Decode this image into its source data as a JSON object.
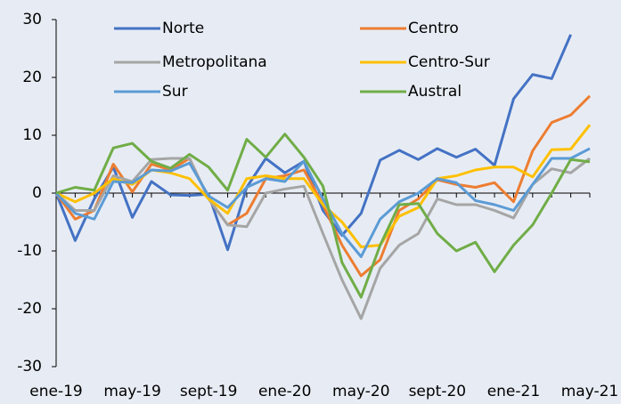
{
  "chart_data": {
    "type": "line",
    "categories": [
      "ene-19",
      null,
      null,
      null,
      "may-19",
      null,
      null,
      null,
      "sept-19",
      null,
      null,
      null,
      "ene-20",
      null,
      null,
      null,
      "may-20",
      null,
      null,
      null,
      "sept-20",
      null,
      null,
      null,
      "ene-21",
      null,
      null,
      null,
      "may-21"
    ],
    "series": [
      {
        "name": "Norte",
        "color": "#4472c4",
        "values": [
          0,
          -8.2,
          -1,
          4.5,
          -4.2,
          2,
          -0.3,
          -0.4,
          -0.2,
          -9.8,
          1,
          6,
          3.5,
          5.5,
          -3,
          -7.3,
          -3.5,
          5.7,
          7.4,
          5.8,
          7.7,
          6.2,
          7.6,
          4.8,
          16.3,
          20.5,
          19.8,
          27.4,
          null
        ]
      },
      {
        "name": "Centro",
        "color": "#ed7d31",
        "values": [
          0,
          -4.5,
          -3,
          5,
          0.2,
          5,
          4,
          6,
          -1,
          -5.5,
          -3.5,
          2.5,
          3,
          4,
          -2,
          -9,
          -14.3,
          -11.5,
          -3,
          -1,
          2.3,
          1.5,
          1,
          1.8,
          -1.5,
          7.3,
          12.2,
          13.5,
          16.8
        ]
      },
      {
        "name": "Metropolitana",
        "color": "#a5a5a5",
        "values": [
          0,
          -3,
          -3,
          3,
          2,
          5.8,
          6,
          6,
          -1,
          -5.5,
          -5.8,
          0,
          0.7,
          1.2,
          -7,
          -15,
          -21.7,
          -13,
          -9,
          -7,
          -1,
          -2,
          -2,
          -3,
          -4.3,
          1.5,
          4.2,
          3.5,
          6
        ]
      },
      {
        "name": "Centro-Sur",
        "color": "#ffc000",
        "values": [
          0,
          -1.5,
          0,
          2.5,
          1.5,
          4,
          3.5,
          2.5,
          -1,
          -3.5,
          2.5,
          3,
          2.5,
          2.5,
          -2,
          -5,
          -9.3,
          -9,
          -4,
          -2.5,
          2.5,
          3,
          4,
          4.5,
          4.5,
          2.8,
          7.5,
          7.6,
          11.8
        ]
      },
      {
        "name": "Sur",
        "color": "#5b9bd5",
        "values": [
          0,
          -3.5,
          -4.5,
          2,
          1.8,
          4,
          3.8,
          5.2,
          -0.5,
          -2.5,
          1,
          2.5,
          2,
          5.5,
          -1,
          -7,
          -11,
          -4.5,
          -1.5,
          0,
          2.5,
          1.8,
          -1.3,
          -2,
          -3,
          1.5,
          6,
          6,
          7.7
        ]
      },
      {
        "name": "Austral",
        "color": "#70ad47",
        "values": [
          0,
          1,
          0.5,
          7.8,
          8.6,
          5.5,
          4.3,
          6.7,
          4.5,
          0.5,
          9.3,
          6.2,
          10.2,
          6.2,
          1.2,
          -12,
          -18,
          -9,
          -2,
          -1.8,
          -7,
          -10,
          -8.5,
          -13.6,
          -9,
          -5.5,
          0,
          5.8,
          5.4
        ]
      }
    ],
    "ylim": [
      -30,
      30
    ],
    "yticks": [
      -30,
      -20,
      -10,
      0,
      10,
      20,
      30
    ]
  }
}
